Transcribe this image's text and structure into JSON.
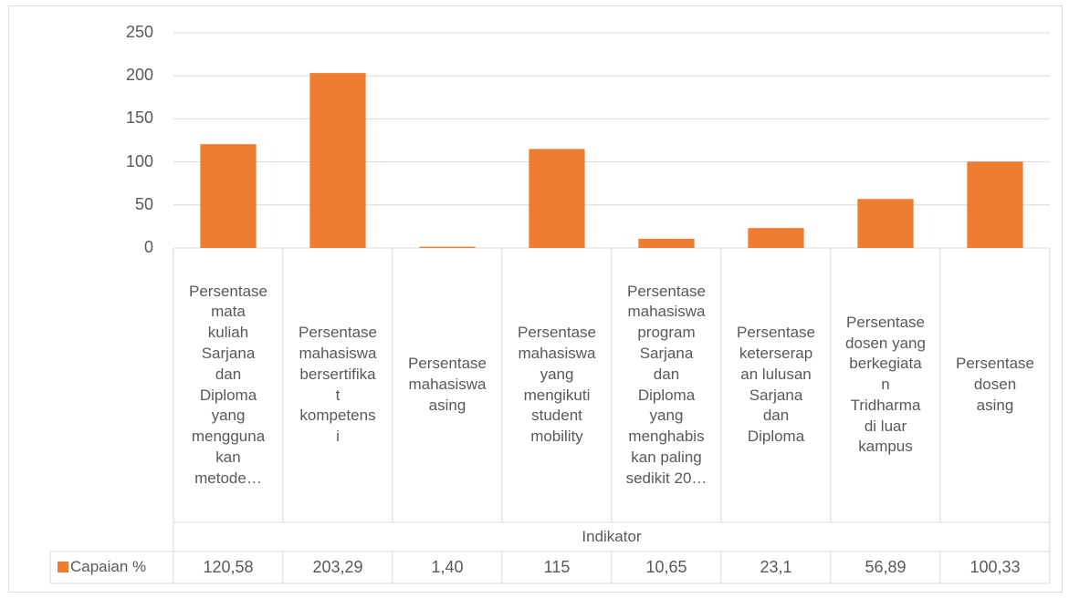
{
  "chart_data": {
    "type": "bar",
    "x_label": "Indikator",
    "categories": [
      "Persentase\nmata\nkuliah\nSarjana\ndan\nDiploma\nyang\nmengguna\nkan\nmetode…",
      "Persentase\nmahasiswa\nbersertifika\nt\nkompetens\ni",
      "Persentase\nmahasiswa\nasing",
      "Persentase\nmahasiswa\nyang\nmengikuti\nstudent\nmobility",
      "Persentase\nmahasiswa\nprogram\nSarjana\ndan\nDiploma\nyang\nmenghabis\nkan paling\nsedikit 20…",
      "Persentase\nketerserap\nan lulusan\nSarjana\ndan\nDiploma",
      "Persentase\ndosen yang\nberkegiata\nn\nTridharma\ndi luar\nkampus",
      "Persentase\ndosen\nasing"
    ],
    "series": [
      {
        "name": "Capaian %",
        "color": "#ed7d31",
        "values": [
          120.58,
          203.29,
          1.4,
          115,
          10.65,
          23.1,
          56.89,
          100.33
        ],
        "value_labels": [
          "120,58",
          "203,29",
          "1,40",
          "115",
          "10,65",
          "23,1",
          "56,89",
          "100,33"
        ]
      }
    ],
    "ylim": [
      0,
      250
    ],
    "yticks": [
      0,
      50,
      100,
      150,
      200,
      250
    ],
    "grid": true
  }
}
